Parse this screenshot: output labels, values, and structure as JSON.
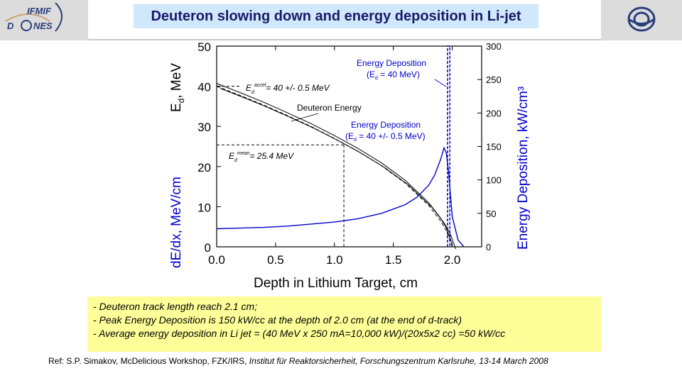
{
  "header": {
    "title": "Deuteron slowing down and energy deposition in Li-jet",
    "logo_line1": "IFMIF",
    "logo_line2_a": "D",
    "logo_line2_b": "NES"
  },
  "chart_data": {
    "type": "line",
    "xlabel": "Depth in Lithium Target, cm",
    "ylabel_left_top": "E_d, MeV",
    "ylabel_left_bottom": "dE/dx, MeV/cm",
    "ylabel_right": "Energy Deposition, kW/cm³",
    "xlim": [
      0.0,
      2.25
    ],
    "ylim_left": [
      0,
      50
    ],
    "ylim_right": [
      0,
      300
    ],
    "x_ticks": [
      "0.0",
      "0.5",
      "1.0",
      "1.5",
      "2.0"
    ],
    "y_left_ticks": [
      "0",
      "10",
      "20",
      "30",
      "40",
      "50"
    ],
    "y_right_ticks": [
      "0",
      "50",
      "100",
      "150",
      "200",
      "250",
      "300"
    ],
    "annotations": {
      "eaccel": "= 40 +/- 0.5 MeV",
      "emean": "= 25.4 MeV",
      "deuteron_energy": "Deuteron Energy",
      "edep_40_line1": "Energy Deposition",
      "edep_40_line2": "(E",
      "edep_40_line2b": " = 40 MeV)",
      "edep_spread_line1": "Energy Deposition",
      "edep_spread_line2": "(E",
      "edep_spread_line2b": " = 40 +/- 0.5 MeV)"
    },
    "series": [
      {
        "name": "Deuteron Energy",
        "axis": "left",
        "color": "#000000",
        "x": [
          0.0,
          0.2,
          0.4,
          0.6,
          0.8,
          1.0,
          1.1,
          1.2,
          1.4,
          1.6,
          1.8,
          1.9,
          1.95,
          2.0
        ],
        "y": [
          40.0,
          37.7,
          35.3,
          32.7,
          30.0,
          27.0,
          25.4,
          23.8,
          20.2,
          15.9,
          10.3,
          6.5,
          4.0,
          0.0
        ]
      },
      {
        "name": "Energy Deposition (Ed = 40 +/- 0.5 MeV)",
        "axis": "right",
        "color": "#0000cc",
        "x": [
          0.0,
          0.2,
          0.4,
          0.6,
          0.8,
          1.0,
          1.2,
          1.4,
          1.6,
          1.7,
          1.8,
          1.85,
          1.9,
          1.93,
          1.95,
          1.97,
          2.0,
          2.05,
          2.1
        ],
        "y": [
          27,
          28,
          29,
          31,
          34,
          37,
          42,
          50,
          63,
          74,
          92,
          107,
          130,
          148,
          140,
          110,
          45,
          10,
          0
        ]
      },
      {
        "name": "Energy Deposition (Ed = 40 MeV)",
        "axis": "right",
        "color": "#0000cc",
        "x": [
          1.96,
          1.96,
          1.98,
          1.98
        ],
        "y": [
          0,
          300,
          300,
          0
        ]
      }
    ],
    "reference_lines": {
      "e_accel_y": 40,
      "e_mean_y": 25.4,
      "e_mean_x": 1.08
    }
  },
  "notes": [
    "- Deuteron track length reach 2.1 cm;",
    "- Peak Energy Deposition is 150 kW/cc at the depth of 2.0 cm (at the end of d-track)",
    "- Average energy deposition in Li jet = (40 MeV x 250 mA=10,000 kW)/(20x5x2 cc) =50 kW/cc"
  ],
  "reference": {
    "plain": "Ref: S.P. Simakov, McDelicious Workshop, FZK/IRS, ",
    "italic": "Institut für Reaktorsicherheit, Forschungszentrum Karlsruhe, 13-14 March 2008"
  }
}
